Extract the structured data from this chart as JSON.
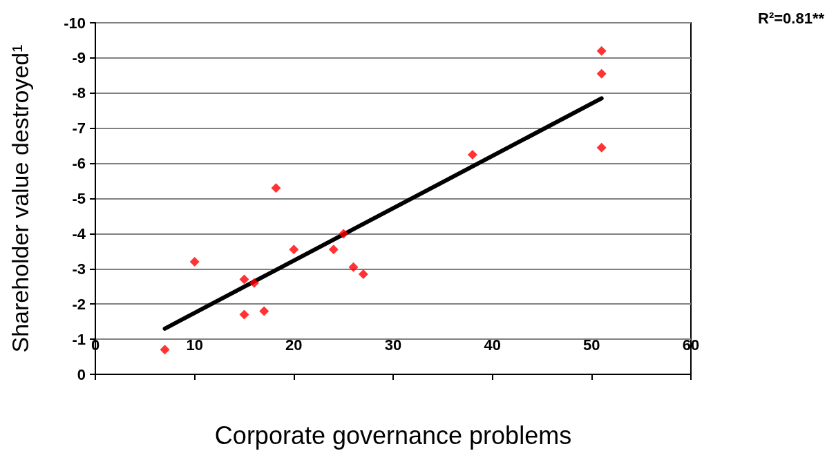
{
  "chart_data": {
    "type": "scatter",
    "xlabel": "Corporate governance problems",
    "ylabel": "Shareholder value destroyed¹",
    "annotations": [
      "R²=0.81**"
    ],
    "xlim": [
      0,
      60
    ],
    "xticks": [
      0,
      10,
      20,
      30,
      40,
      50,
      60
    ],
    "ylim": [
      0,
      -10
    ],
    "yticks": [
      0,
      -1,
      -2,
      -3,
      -4,
      -5,
      -6,
      -7,
      -8,
      -9,
      -10
    ],
    "grid": "y",
    "series": [
      {
        "color": "#ff0000",
        "marker": "diamond",
        "x": [
          7,
          10,
          15,
          16,
          15,
          17,
          18.2,
          20,
          24,
          25,
          26,
          27,
          38,
          51,
          51,
          51
        ],
        "values": [
          -0.7,
          -3.2,
          -2.7,
          -2.6,
          -1.7,
          -1.8,
          -5.3,
          -3.55,
          -3.55,
          -4.0,
          -3.05,
          -2.85,
          -6.25,
          -9.2,
          -8.55,
          -6.45
        ]
      },
      {
        "type": "line",
        "color": "#000000",
        "marker": "none",
        "line_style": "solid",
        "x": [
          7,
          51
        ],
        "values": [
          -1.3,
          -7.85
        ]
      }
    ]
  }
}
